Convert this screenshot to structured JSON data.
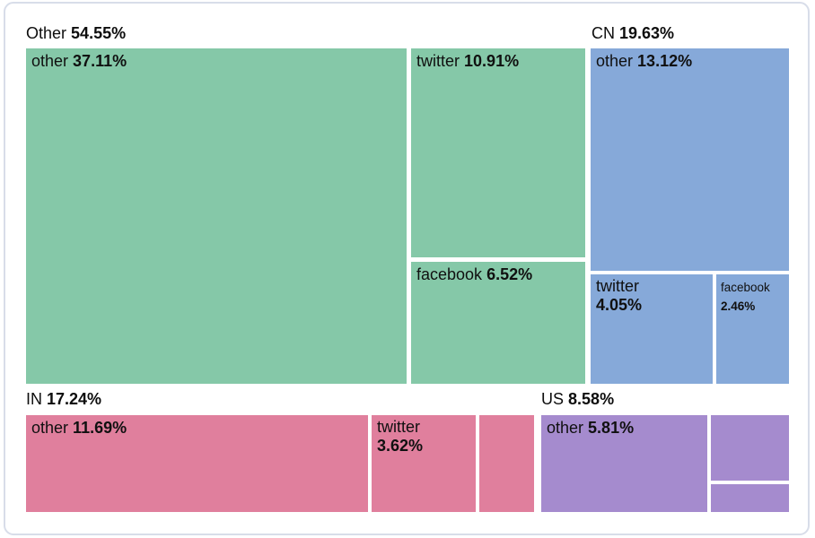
{
  "chart_data": {
    "type": "treemap",
    "groups": [
      {
        "label": "Other",
        "display": "54.55%",
        "value": 54.55,
        "color": "#85c8a8",
        "children": [
          {
            "label": "other",
            "display": "37.11%",
            "value": 37.11
          },
          {
            "label": "twitter",
            "display": "10.91%",
            "value": 10.91
          },
          {
            "label": "facebook",
            "display": "6.52%",
            "value": 6.52
          }
        ]
      },
      {
        "label": "CN",
        "display": "19.63%",
        "value": 19.63,
        "color": "#86a9d9",
        "children": [
          {
            "label": "other",
            "display": "13.12%",
            "value": 13.12
          },
          {
            "label": "twitter",
            "display": "4.05%",
            "value": 4.05
          },
          {
            "label": "facebook",
            "display": "2.46%",
            "value": 2.46
          }
        ]
      },
      {
        "label": "IN",
        "display": "17.24%",
        "value": 17.24,
        "color": "#e07f9d",
        "children": [
          {
            "label": "other",
            "display": "11.69%",
            "value": 11.69
          },
          {
            "label": "twitter",
            "display": "3.62%",
            "value": 3.62
          },
          {
            "label": "",
            "display": ""
          }
        ]
      },
      {
        "label": "US",
        "display": "8.58%",
        "value": 8.58,
        "color": "#a58bce",
        "children": [
          {
            "label": "other",
            "display": "5.81%",
            "value": 5.81
          },
          {
            "label": "",
            "display": ""
          },
          {
            "label": "",
            "display": ""
          }
        ]
      }
    ]
  }
}
